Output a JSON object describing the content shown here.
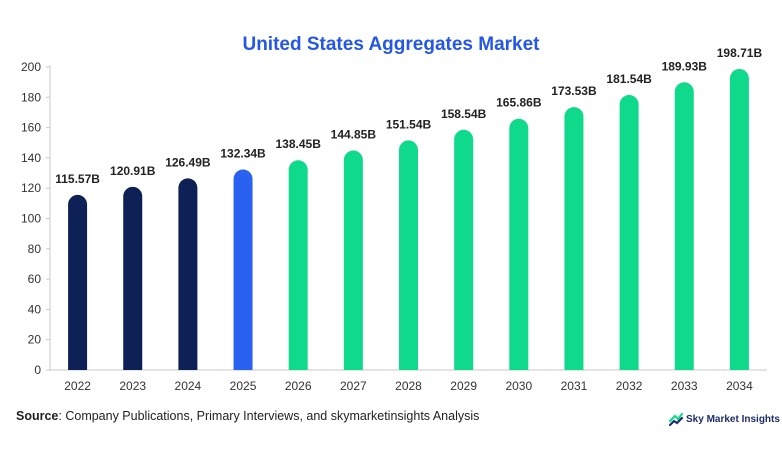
{
  "chart_data": {
    "type": "bar",
    "title": "United States Aggregates Market",
    "categories": [
      "2022",
      "2023",
      "2024",
      "2025",
      "2026",
      "2027",
      "2028",
      "2029",
      "2030",
      "2031",
      "2032",
      "2033",
      "2034"
    ],
    "values": [
      115.57,
      120.91,
      126.49,
      132.34,
      138.45,
      144.85,
      151.54,
      158.54,
      165.86,
      173.53,
      181.54,
      189.93,
      198.71
    ],
    "data_labels": [
      "115.57B",
      "120.91B",
      "126.49B",
      "132.34B",
      "138.45B",
      "144.85B",
      "151.54B",
      "158.54B",
      "165.86B",
      "173.53B",
      "181.54B",
      "189.93B",
      "198.71B"
    ],
    "y_ticks": [
      0,
      20,
      40,
      60,
      80,
      100,
      120,
      140,
      160,
      180,
      200
    ],
    "ylim": [
      0,
      200
    ],
    "xlabel": "",
    "ylabel": "",
    "grid": false,
    "colors": {
      "historical": "#0d2157",
      "base_year": "#2962f0",
      "forecast": "#0fd98a"
    },
    "color_groups": [
      "historical",
      "historical",
      "historical",
      "base_year",
      "forecast",
      "forecast",
      "forecast",
      "forecast",
      "forecast",
      "forecast",
      "forecast",
      "forecast",
      "forecast"
    ]
  },
  "footer": {
    "source_label": "Source",
    "source_text": ": Company Publications, Primary Interviews, and skymarketinsights Analysis",
    "brand": "Sky Market Insights",
    "brand_icon": "sky-market-insights-logo-icon"
  }
}
